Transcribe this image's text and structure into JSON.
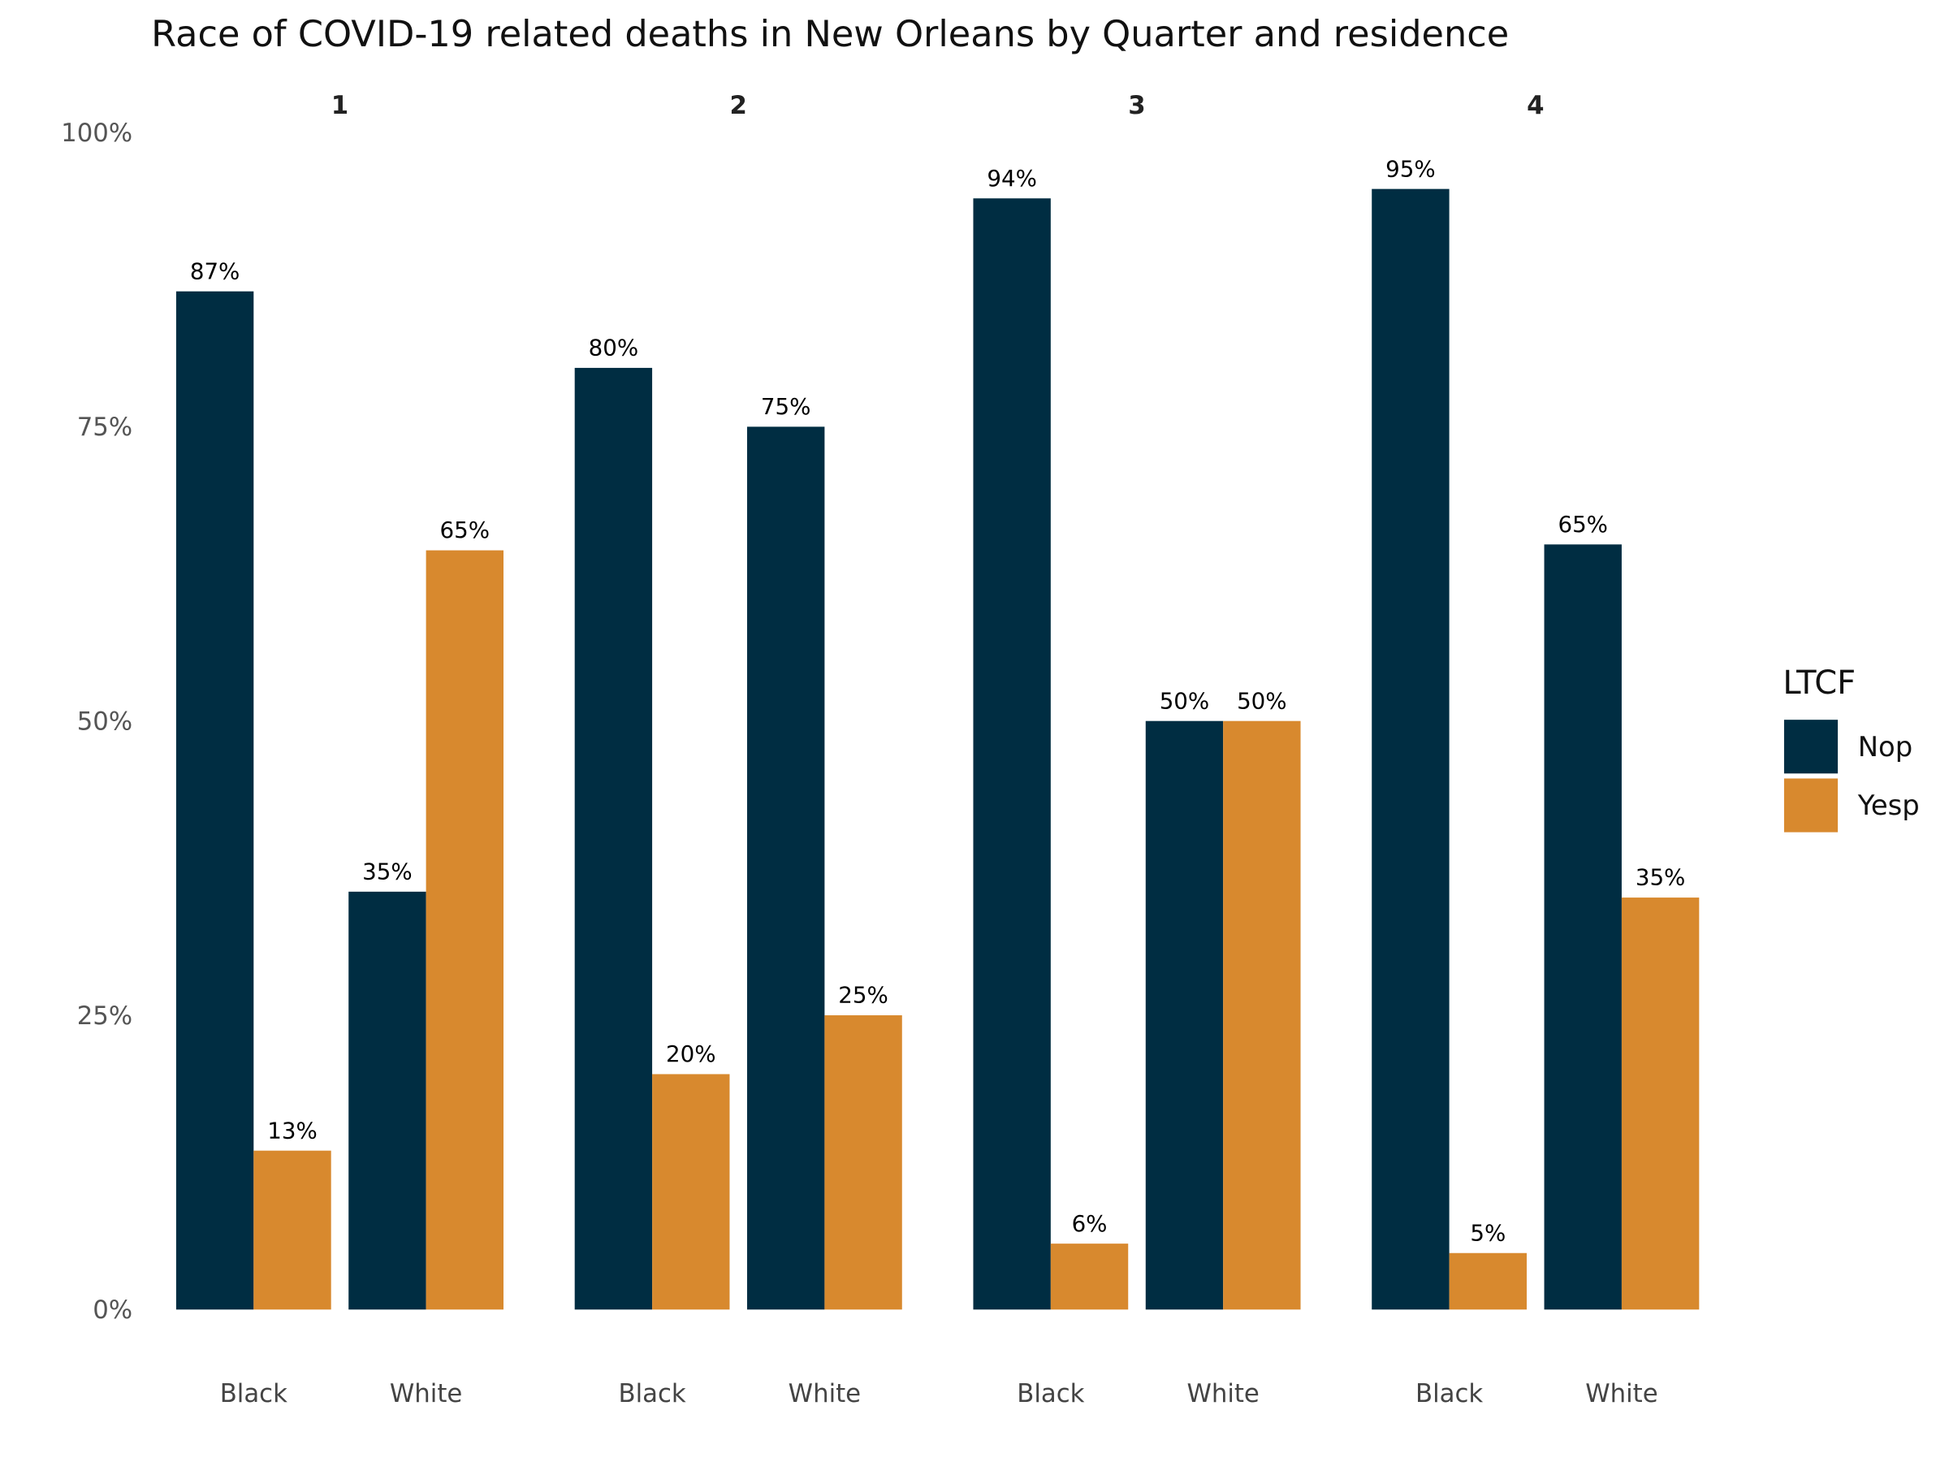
{
  "chart_data": {
    "type": "bar",
    "title": "Race of COVID-19 related deaths in New Orleans by Quarter and residence",
    "xlabel": "",
    "ylabel": "",
    "ylim": [
      0,
      100
    ],
    "y_ticks": [
      "0%",
      "25%",
      "50%",
      "75%",
      "100%"
    ],
    "grid": false,
    "facets": [
      "1",
      "2",
      "3",
      "4"
    ],
    "categories": [
      "Black",
      "White"
    ],
    "legend": {
      "title": "LTCF",
      "position": "right"
    },
    "colors": {
      "Nop": "#002d42",
      "Yesp": "#d8892e"
    },
    "series": [
      {
        "name": "Nop",
        "values": [
          [
            86.5,
            35.5
          ],
          [
            80,
            75
          ],
          [
            94.4,
            50
          ],
          [
            95.2,
            65
          ]
        ],
        "labels": [
          [
            "87%",
            "35%"
          ],
          [
            "80%",
            "75%"
          ],
          [
            "94%",
            "50%"
          ],
          [
            "95%",
            "65%"
          ]
        ]
      },
      {
        "name": "Yesp",
        "values": [
          [
            13.5,
            64.5
          ],
          [
            20,
            25
          ],
          [
            5.6,
            50
          ],
          [
            4.8,
            35
          ]
        ],
        "labels": [
          [
            "13%",
            "65%"
          ],
          [
            "20%",
            "25%"
          ],
          [
            "6%",
            "50%"
          ],
          [
            "5%",
            "35%"
          ]
        ]
      }
    ]
  }
}
